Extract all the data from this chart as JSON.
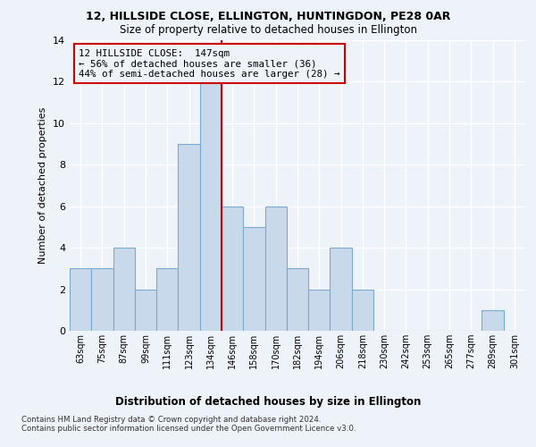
{
  "title1": "12, HILLSIDE CLOSE, ELLINGTON, HUNTINGDON, PE28 0AR",
  "title2": "Size of property relative to detached houses in Ellington",
  "xlabel_bottom": "Distribution of detached houses by size in Ellington",
  "ylabel": "Number of detached properties",
  "categories": [
    "63sqm",
    "75sqm",
    "87sqm",
    "99sqm",
    "111sqm",
    "123sqm",
    "134sqm",
    "146sqm",
    "158sqm",
    "170sqm",
    "182sqm",
    "194sqm",
    "206sqm",
    "218sqm",
    "230sqm",
    "242sqm",
    "253sqm",
    "265sqm",
    "277sqm",
    "289sqm",
    "301sqm"
  ],
  "values": [
    3,
    3,
    4,
    2,
    3,
    9,
    12,
    6,
    5,
    6,
    3,
    2,
    4,
    2,
    0,
    0,
    0,
    0,
    0,
    1,
    0
  ],
  "bar_color": "#c9d9ec",
  "bar_edge_color": "#7aaacf",
  "annot_line1": "12 HILLSIDE CLOSE:  147sqm",
  "annot_line2": "← 56% of detached houses are smaller (36)",
  "annot_line3": "44% of semi-detached houses are larger (28) →",
  "vline_color": "#cc0000",
  "box_edge_color": "#cc0000",
  "bg_color": "#eef2f9",
  "grid_color": "#ffffff",
  "footnote": "Contains HM Land Registry data © Crown copyright and database right 2024.\nContains public sector information licensed under the Open Government Licence v3.0.",
  "ylim": [
    0,
    14
  ],
  "yticks": [
    0,
    2,
    4,
    6,
    8,
    10,
    12,
    14
  ]
}
